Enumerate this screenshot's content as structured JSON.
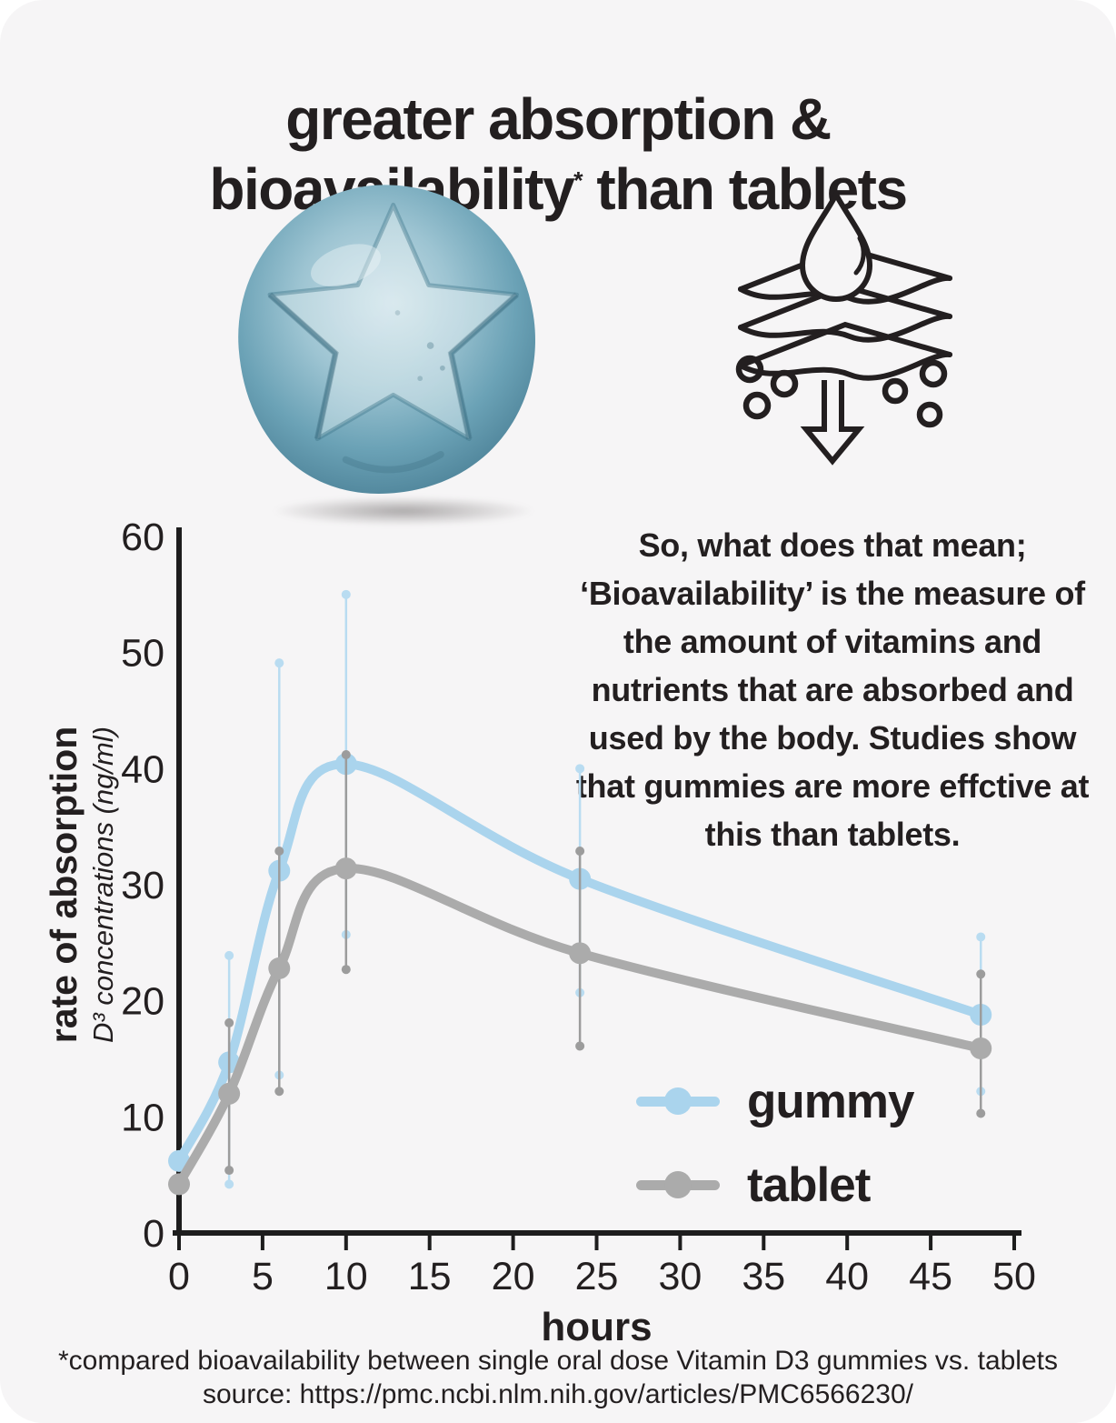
{
  "title": {
    "line1": "greater absorption &",
    "line2_pre": "bioavailability",
    "line2_sup": "*",
    "line2_post": " than tablets"
  },
  "icons": {
    "gummy_image": "blue-star-gummy",
    "absorption_icon": "droplet-through-layers-arrow"
  },
  "description": {
    "text": "So, what does that mean; ‘Bioavailability’ is the measure of the amount of vitamins and nutrients that are absorbed and used by the body. Studies show that gummies are more effctive at this than tablets."
  },
  "chart_data": {
    "type": "line",
    "x": [
      0,
      3,
      6,
      10,
      24,
      48
    ],
    "series": [
      {
        "name": "gummy",
        "color": "#aad4ed",
        "err_color": "#b9dcf1",
        "values": [
          6.2,
          14.7,
          31.2,
          40.4,
          30.5,
          18.8
        ],
        "err_low": [
          null,
          4.2,
          13.6,
          25.7,
          20.7,
          12.2
        ],
        "err_high": [
          null,
          23.9,
          49.1,
          55.0,
          40.0,
          25.5
        ]
      },
      {
        "name": "tablet",
        "color": "#ababab",
        "err_color": "#9c9c9c",
        "values": [
          4.2,
          12.0,
          22.8,
          31.4,
          24.1,
          15.9
        ],
        "err_low": [
          null,
          5.4,
          12.2,
          22.7,
          16.1,
          10.3
        ],
        "err_high": [
          null,
          18.1,
          32.9,
          41.2,
          32.9,
          22.3
        ]
      }
    ],
    "title": "",
    "xlabel": "hours",
    "ylabel_main": "rate of absorption",
    "ylabel_sub": "D³ concentrations (ng/ml)",
    "xlim": [
      0,
      50
    ],
    "ylim": [
      0,
      60
    ],
    "x_ticks": [
      0,
      5,
      10,
      15,
      20,
      25,
      30,
      35,
      40,
      45,
      50
    ],
    "y_ticks": [
      0,
      10,
      20,
      30,
      40,
      50,
      60
    ],
    "grid": false,
    "legend_position": "inside-bottom-right",
    "axis_color": "#1d1d1d",
    "text_color": "#231f20"
  },
  "footer": {
    "line1": "*compared bioavailability between single oral dose Vitamin D3 gummies vs. tablets",
    "line2": "source: https://pmc.ncbi.nlm.nih.gov/articles/PMC6566230/"
  }
}
